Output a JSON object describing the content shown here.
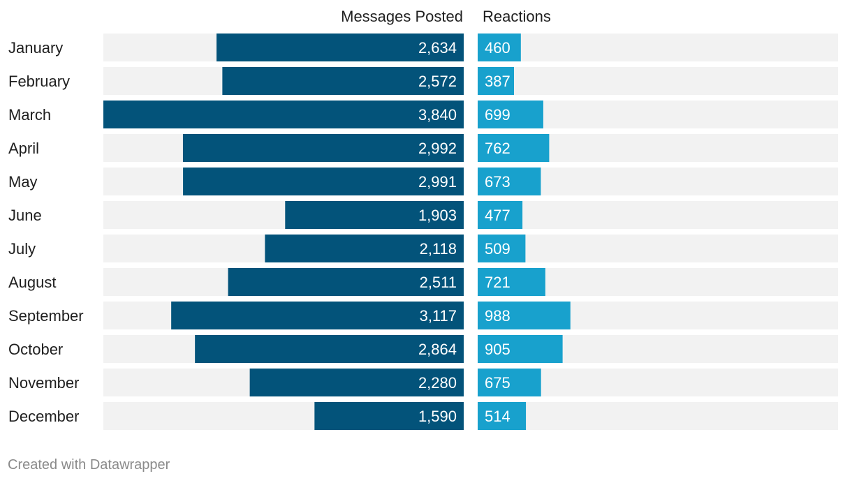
{
  "chart_data": {
    "type": "bar",
    "categories": [
      "January",
      "February",
      "March",
      "April",
      "May",
      "June",
      "July",
      "August",
      "September",
      "October",
      "November",
      "December"
    ],
    "series": [
      {
        "name": "Messages Posted",
        "values": [
          2634,
          2572,
          3840,
          2992,
          2991,
          1903,
          2118,
          2511,
          3117,
          2864,
          2280,
          1590
        ],
        "labels": [
          "2,634",
          "2,572",
          "3,840",
          "2,992",
          "2,991",
          "1,903",
          "2,118",
          "2,511",
          "3,117",
          "2,864",
          "2,280",
          "1,590"
        ],
        "color": "#03537a",
        "direction": "right-to-left",
        "max": 3840
      },
      {
        "name": "Reactions",
        "values": [
          460,
          387,
          699,
          762,
          673,
          477,
          509,
          721,
          988,
          905,
          675,
          514
        ],
        "labels": [
          "460",
          "387",
          "699",
          "762",
          "673",
          "477",
          "509",
          "721",
          "988",
          "905",
          "675",
          "514"
        ],
        "color": "#18a1cd",
        "direction": "left-to-right",
        "max": 3840
      }
    ],
    "background_bar_color": "#f2f2f2",
    "grid": false,
    "legend": "none"
  },
  "footer": {
    "credit": "Created with Datawrapper"
  }
}
